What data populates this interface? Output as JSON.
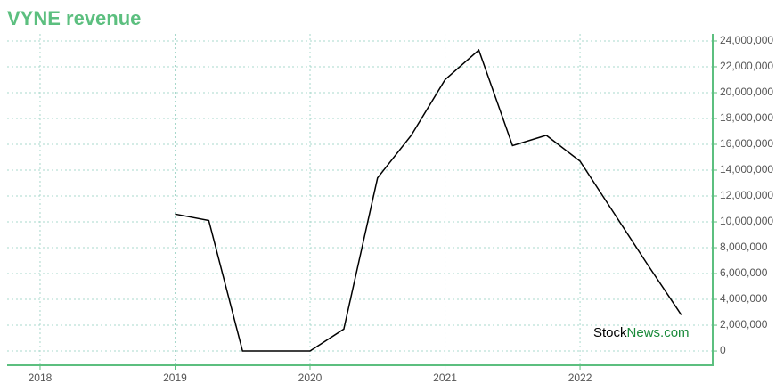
{
  "chart_data": {
    "type": "line",
    "title": "VYNE revenue",
    "x": [
      2019,
      2019.25,
      2019.5,
      2019.75,
      2020,
      2020.25,
      2020.5,
      2020.75,
      2021,
      2021.25,
      2021.5,
      2021.75,
      2022,
      2022.25,
      2022.5,
      2022.75
    ],
    "series": [
      {
        "name": "Revenue",
        "color": "#000000",
        "values": [
          10600000,
          10100000,
          0,
          0,
          0,
          1700000,
          13400000,
          16700000,
          21000000,
          23300000,
          15900000,
          16700000,
          14700000,
          10700000,
          6700000,
          2800000
        ]
      }
    ],
    "xlim": [
      2017.756,
      2022.983
    ],
    "xticks": [
      2018,
      2019,
      2020,
      2021,
      2022
    ],
    "ylim": [
      -1100000,
      24550000
    ],
    "yticks": [
      0,
      {
        "value": 2000000,
        "label": "2,000,000"
      },
      {
        "value": 4000000,
        "label": "4,000,000"
      },
      {
        "value": 6000000,
        "label": "6,000,000"
      },
      {
        "value": 8000000,
        "label": "8,000,000"
      },
      {
        "value": 10000000,
        "label": "10,000,000"
      },
      {
        "value": 12000000,
        "label": "12,000,000"
      },
      {
        "value": 14000000,
        "label": "14,000,000"
      },
      {
        "value": 16000000,
        "label": "16,000,000"
      },
      {
        "value": 18000000,
        "label": "18,000,000"
      },
      {
        "value": 20000000,
        "label": "20,000,000"
      },
      {
        "value": 22000000,
        "label": "22,000,000"
      },
      {
        "value": 24000000,
        "label": "24,000,000"
      }
    ],
    "grid": true,
    "watermark": [
      "Stock",
      "News.com"
    ]
  }
}
